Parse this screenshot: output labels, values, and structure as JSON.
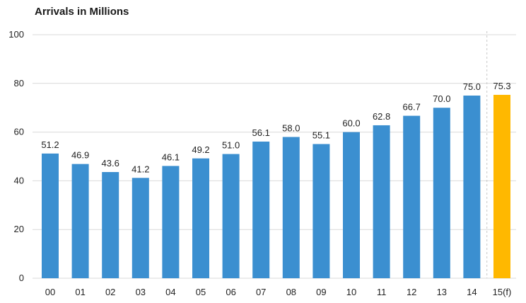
{
  "chart_data": {
    "type": "bar",
    "title": "Arrivals in Millions",
    "categories": [
      "00",
      "01",
      "02",
      "03",
      "04",
      "05",
      "06",
      "07",
      "08",
      "09",
      "10",
      "11",
      "12",
      "13",
      "14",
      "15(f)"
    ],
    "values": [
      51.2,
      46.9,
      43.6,
      41.2,
      46.1,
      49.2,
      51.0,
      56.1,
      58.0,
      55.1,
      60.0,
      62.8,
      66.7,
      70.0,
      75.0,
      75.3
    ],
    "labels": [
      "51.2",
      "46.9",
      "43.6",
      "41.2",
      "46.1",
      "49.2",
      "51.0",
      "56.1",
      "58.0",
      "55.1",
      "60.0",
      "62.8",
      "66.7",
      "70.0",
      "75.0",
      "75.3"
    ],
    "yticks": [
      0,
      20,
      40,
      60,
      80,
      100
    ],
    "ylim": [
      0,
      100
    ],
    "grid": true,
    "forecast_divider_before_index": 15,
    "colors": {
      "bar": "#3b8fd0",
      "forecast_bar": "#ffb800",
      "grid": "#d9d9d9"
    }
  }
}
